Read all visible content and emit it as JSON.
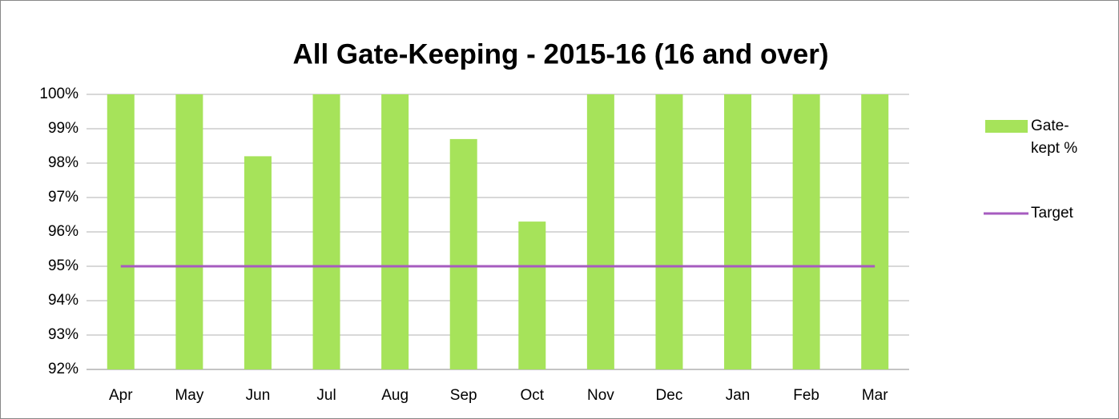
{
  "chart_data": {
    "type": "bar",
    "title": "All Gate-Keeping - 2015-16 (16 and over)",
    "categories": [
      "Apr",
      "May",
      "Jun",
      "Jul",
      "Aug",
      "Sep",
      "Oct",
      "Nov",
      "Dec",
      "Jan",
      "Feb",
      "Mar"
    ],
    "series": [
      {
        "name": "Gate-kept %",
        "type": "bar",
        "color": "#a6e35a",
        "values": [
          100,
          100,
          98.2,
          100,
          100,
          98.7,
          96.3,
          100,
          100,
          100,
          100,
          100
        ]
      },
      {
        "name": "Target",
        "type": "line",
        "color": "#a65bbf",
        "values": [
          95,
          95,
          95,
          95,
          95,
          95,
          95,
          95,
          95,
          95,
          95,
          95
        ]
      }
    ],
    "ylim": [
      92,
      100
    ],
    "yticks": [
      {
        "value": 92,
        "label": "92%"
      },
      {
        "value": 93,
        "label": "93%"
      },
      {
        "value": 94,
        "label": "94%"
      },
      {
        "value": 95,
        "label": "95%"
      },
      {
        "value": 96,
        "label": "96%"
      },
      {
        "value": 97,
        "label": "97%"
      },
      {
        "value": 98,
        "label": "98%"
      },
      {
        "value": 99,
        "label": "99%"
      },
      {
        "value": 100,
        "label": "100%"
      }
    ],
    "grid": true,
    "legend": "right"
  }
}
